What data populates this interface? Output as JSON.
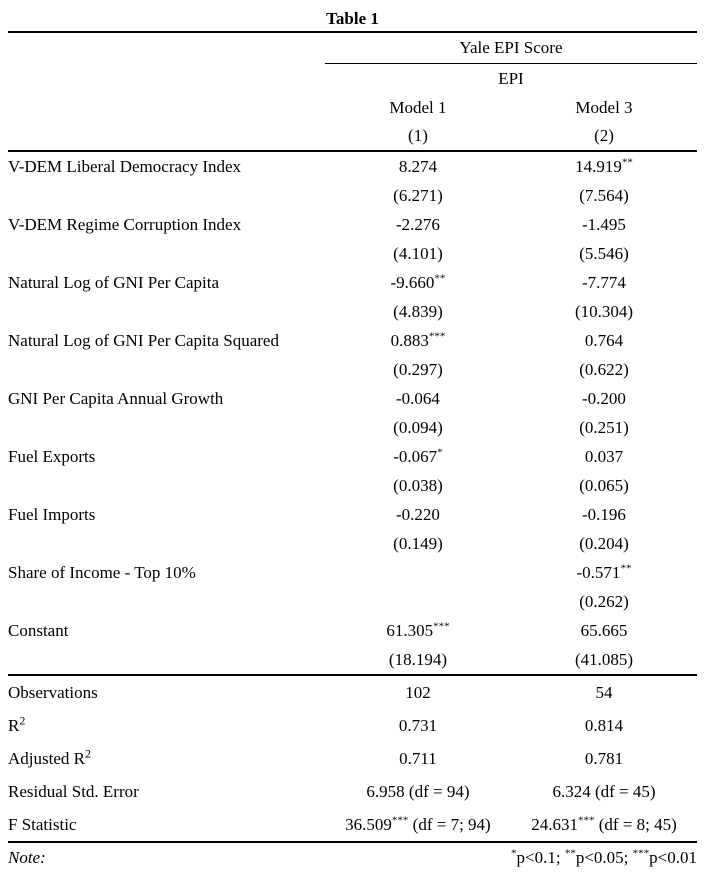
{
  "page_title": "Table 1",
  "header": {
    "group_label": "Yale EPI Score",
    "dep_var_label": "EPI",
    "model1": "Model 1",
    "model2": "Model 3",
    "num1": "(1)",
    "num2": "(2)"
  },
  "body": [
    {
      "label": "V-DEM Liberal Democracy Index",
      "m1": "8.274",
      "m1_stars": "",
      "m1_se": "(6.271)",
      "m2": "14.919",
      "m2_stars": "**",
      "m2_se": "(7.564)"
    },
    {
      "label": "V-DEM Regime Corruption Index",
      "m1": "-2.276",
      "m1_stars": "",
      "m1_se": "(4.101)",
      "m2": "-1.495",
      "m2_stars": "",
      "m2_se": "(5.546)"
    },
    {
      "label": "Natural Log of GNI Per Capita",
      "m1": "-9.660",
      "m1_stars": "**",
      "m1_se": "(4.839)",
      "m2": "-7.774",
      "m2_stars": "",
      "m2_se": "(10.304)"
    },
    {
      "label": "Natural Log of GNI Per Capita Squared",
      "m1": "0.883",
      "m1_stars": "***",
      "m1_se": "(0.297)",
      "m2": "0.764",
      "m2_stars": "",
      "m2_se": "(0.622)"
    },
    {
      "label": "GNI Per Capita Annual Growth",
      "m1": "-0.064",
      "m1_stars": "",
      "m1_se": "(0.094)",
      "m2": "-0.200",
      "m2_stars": "",
      "m2_se": "(0.251)"
    },
    {
      "label": "Fuel Exports",
      "m1": "-0.067",
      "m1_stars": "*",
      "m1_se": "(0.038)",
      "m2": "0.037",
      "m2_stars": "",
      "m2_se": "(0.065)"
    },
    {
      "label": "Fuel Imports",
      "m1": "-0.220",
      "m1_stars": "",
      "m1_se": "(0.149)",
      "m2": "-0.196",
      "m2_stars": "",
      "m2_se": "(0.204)"
    },
    {
      "label": "Share of Income - Top 10%",
      "m1": "",
      "m1_stars": "",
      "m1_se": "",
      "m2": "-0.571",
      "m2_stars": "**",
      "m2_se": "(0.262)"
    },
    {
      "label": "Constant",
      "m1": "61.305",
      "m1_stars": "***",
      "m1_se": "(18.194)",
      "m2": "65.665",
      "m2_stars": "",
      "m2_se": "(41.085)"
    }
  ],
  "stats": [
    {
      "label": "Observations",
      "label_sup": "",
      "m1": "102",
      "m1_stars": "",
      "m1_suffix": "",
      "m2": "54",
      "m2_stars": "",
      "m2_suffix": ""
    },
    {
      "label": "R",
      "label_sup": "2",
      "m1": "0.731",
      "m1_stars": "",
      "m1_suffix": "",
      "m2": "0.814",
      "m2_stars": "",
      "m2_suffix": ""
    },
    {
      "label": "Adjusted R",
      "label_sup": "2",
      "m1": "0.711",
      "m1_stars": "",
      "m1_suffix": "",
      "m2": "0.781",
      "m2_stars": "",
      "m2_suffix": ""
    },
    {
      "label": "Residual Std. Error",
      "label_sup": "",
      "m1": "6.958 (df = 94)",
      "m1_stars": "",
      "m1_suffix": "",
      "m2": "6.324 (df = 45)",
      "m2_stars": "",
      "m2_suffix": ""
    },
    {
      "label": "F Statistic",
      "label_sup": "",
      "m1": "36.509",
      "m1_stars": "***",
      "m1_suffix": " (df = 7; 94)",
      "m2": "24.631",
      "m2_stars": "***",
      "m2_suffix": " (df = 8; 45)"
    }
  ],
  "note": {
    "label": "Note:",
    "segments": [
      {
        "stars": "*",
        "text": "p<0.1; "
      },
      {
        "stars": "**",
        "text": "p<0.05; "
      },
      {
        "stars": "***",
        "text": "p<0.01"
      }
    ]
  },
  "colors": {
    "text": "#000000",
    "background": "#ffffff",
    "rule": "#000000"
  }
}
